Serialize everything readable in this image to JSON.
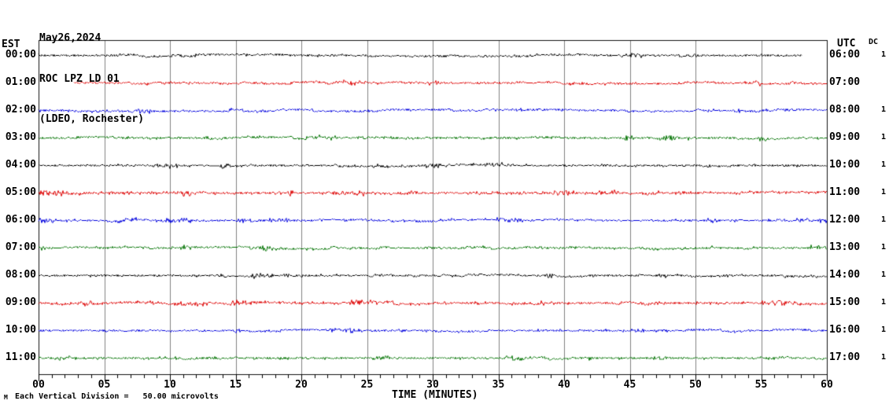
{
  "header": {
    "date": "May26,2024",
    "station": "ROC LPZ LD 01",
    "location": "(LDEO, Rochester)"
  },
  "axes": {
    "left_header": "EST",
    "right_header": "UTC",
    "dc_header": "DC",
    "x_tick_labels": [
      "00",
      "05",
      "10",
      "15",
      "20",
      "25",
      "30",
      "35",
      "40",
      "45",
      "50",
      "55",
      "60"
    ],
    "x_axis_label": "TIME (MINUTES)"
  },
  "footer": {
    "corner_mark": "M",
    "scale_note": "Each Vertical Division =   50.00 microvolts"
  },
  "palette": {
    "black": "#000000",
    "red": "#dd0000",
    "blue": "#0000dd",
    "green": "#007200",
    "grid": "#808080",
    "box": "#111111",
    "tick": "#000000"
  },
  "chart_data": {
    "type": "line",
    "subtype": "helicorder-seismogram",
    "title": "ROC LPZ LD 01 (LDEO, Rochester) May26,2024",
    "xlabel": "TIME (MINUTES)",
    "x_range_minutes": [
      0,
      60
    ],
    "minor_tick_minutes": 1,
    "major_tick_minutes": 5,
    "grid": "vertical-every-5-minutes",
    "vertical_division_microvolts": 50.0,
    "rows_are_hours": true,
    "description": "Twelve hourly traces of quiet background seismic noise (~±0.05 division peak-to-peak) with occasional tiny bursts; no visible earthquakes.",
    "rows": [
      {
        "est": "00:00",
        "utc": "06:00",
        "dc": "1",
        "color": "black",
        "start_min": 0,
        "end_min": 58.1,
        "noise_div": 0.05
      },
      {
        "est": "01:00",
        "utc": "07:00",
        "dc": "",
        "color": "red",
        "start_min": 2.7,
        "end_min": 60,
        "noise_div": 0.05
      },
      {
        "est": "02:00",
        "utc": "08:00",
        "dc": "1",
        "color": "blue",
        "start_min": 0,
        "end_min": 60,
        "noise_div": 0.05
      },
      {
        "est": "03:00",
        "utc": "09:00",
        "dc": "1",
        "color": "green",
        "start_min": 0,
        "end_min": 60,
        "noise_div": 0.05
      },
      {
        "est": "04:00",
        "utc": "10:00",
        "dc": "1",
        "color": "black",
        "start_min": 0,
        "end_min": 60,
        "noise_div": 0.05
      },
      {
        "est": "05:00",
        "utc": "11:00",
        "dc": "1",
        "color": "red",
        "start_min": 0,
        "end_min": 60,
        "noise_div": 0.06
      },
      {
        "est": "06:00",
        "utc": "12:00",
        "dc": "1",
        "color": "blue",
        "start_min": 0,
        "end_min": 60,
        "noise_div": 0.05
      },
      {
        "est": "07:00",
        "utc": "13:00",
        "dc": "1",
        "color": "green",
        "start_min": 0,
        "end_min": 60,
        "noise_div": 0.05
      },
      {
        "est": "08:00",
        "utc": "14:00",
        "dc": "1",
        "color": "black",
        "start_min": 0,
        "end_min": 60,
        "noise_div": 0.05
      },
      {
        "est": "09:00",
        "utc": "15:00",
        "dc": "1",
        "color": "red",
        "start_min": 0,
        "end_min": 60,
        "noise_div": 0.055
      },
      {
        "est": "10:00",
        "utc": "16:00",
        "dc": "1",
        "color": "blue",
        "start_min": 0,
        "end_min": 60,
        "noise_div": 0.05
      },
      {
        "est": "11:00",
        "utc": "17:00",
        "dc": "1",
        "color": "green",
        "start_min": 0,
        "end_min": 60,
        "noise_div": 0.05
      }
    ]
  }
}
